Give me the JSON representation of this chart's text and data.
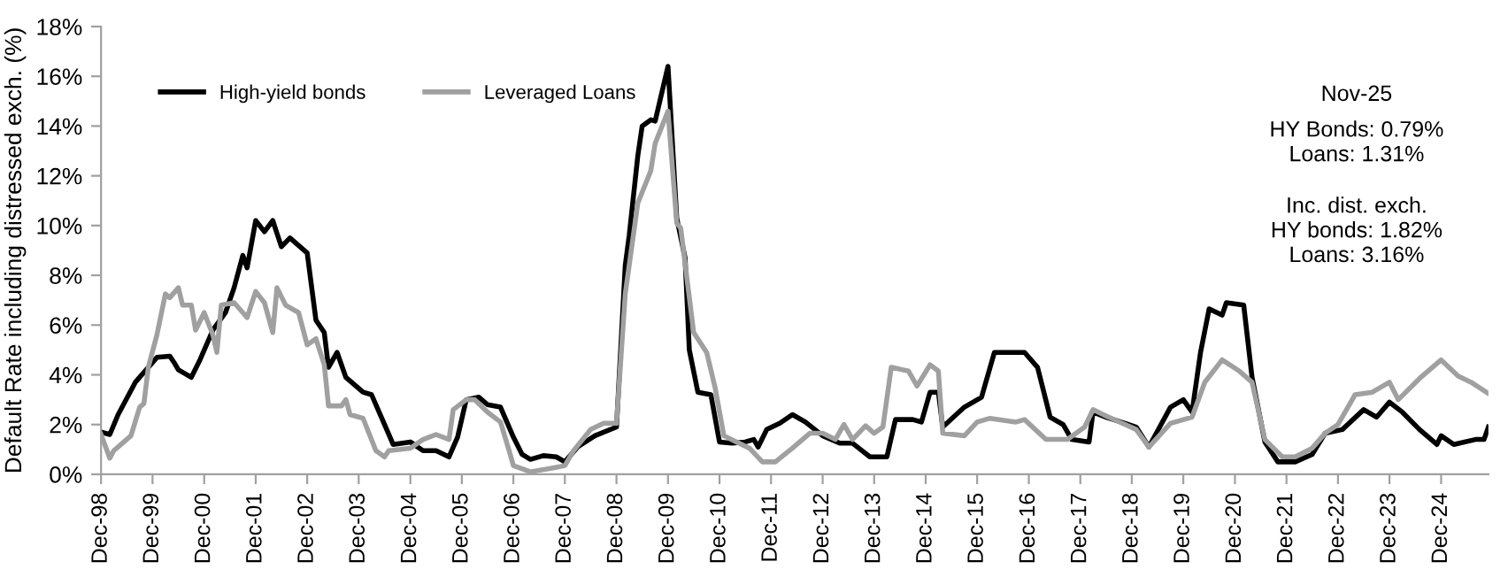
{
  "chart_data": {
    "type": "line",
    "ylabel": "Default Rate including distressed exch. (%)",
    "xlim": [
      "1998-12",
      "2025-11"
    ],
    "xticks": [
      {
        "value": "1998-12",
        "label": "Dec-98"
      },
      {
        "value": "1999-12",
        "label": "Dec-99"
      },
      {
        "value": "2000-12",
        "label": "Dec-00"
      },
      {
        "value": "2001-12",
        "label": "Dec-01"
      },
      {
        "value": "2002-12",
        "label": "Dec-02"
      },
      {
        "value": "2003-12",
        "label": "Dec-03"
      },
      {
        "value": "2004-12",
        "label": "Dec-04"
      },
      {
        "value": "2005-12",
        "label": "Dec-05"
      },
      {
        "value": "2006-12",
        "label": "Dec-06"
      },
      {
        "value": "2007-12",
        "label": "Dec-07"
      },
      {
        "value": "2008-12",
        "label": "Dec-08"
      },
      {
        "value": "2009-12",
        "label": "Dec-09"
      },
      {
        "value": "2010-12",
        "label": "Dec-10"
      },
      {
        "value": "2011-12",
        "label": "Dec-11"
      },
      {
        "value": "2012-12",
        "label": "Dec-12"
      },
      {
        "value": "2013-12",
        "label": "Dec-13"
      },
      {
        "value": "2014-12",
        "label": "Dec-14"
      },
      {
        "value": "2015-12",
        "label": "Dec-15"
      },
      {
        "value": "2016-12",
        "label": "Dec-16"
      },
      {
        "value": "2017-12",
        "label": "Dec-17"
      },
      {
        "value": "2018-12",
        "label": "Dec-18"
      },
      {
        "value": "2019-12",
        "label": "Dec-19"
      },
      {
        "value": "2020-12",
        "label": "Dec-20"
      },
      {
        "value": "2021-12",
        "label": "Dec-21"
      },
      {
        "value": "2022-12",
        "label": "Dec-22"
      },
      {
        "value": "2023-12",
        "label": "Dec-23"
      },
      {
        "value": "2024-12",
        "label": "Dec-24"
      }
    ],
    "ylim": [
      0,
      18
    ],
    "yticks": [
      {
        "value": 0,
        "label": "0%"
      },
      {
        "value": 2,
        "label": "2%"
      },
      {
        "value": 4,
        "label": "4%"
      },
      {
        "value": 6,
        "label": "6%"
      },
      {
        "value": 8,
        "label": "8%"
      },
      {
        "value": 10,
        "label": "10%"
      },
      {
        "value": 12,
        "label": "12%"
      },
      {
        "value": 14,
        "label": "14%"
      },
      {
        "value": 16,
        "label": "16%"
      },
      {
        "value": 18,
        "label": "18%"
      }
    ],
    "grid": false,
    "legend": "top left",
    "marker": "none",
    "line_style": "solid",
    "annotations": [
      "Nov-25",
      "HY Bonds: 0.79%\nLoans: 1.31%",
      "Inc. dist. exch.\nHY bonds: 1.82%\nLoans: 3.16%"
    ],
    "series": [
      {
        "name": "High-yield bonds",
        "color": "#000000",
        "x": [
          "1998-12",
          "1999-02",
          "1999-04",
          "1999-08",
          "1999-11",
          "2000-01",
          "2000-04",
          "2000-05",
          "2000-06",
          "2000-09",
          "2000-11",
          "2001-02",
          "2001-05",
          "2001-07",
          "2001-09",
          "2001-10",
          "2001-12",
          "2002-02",
          "2002-04",
          "2002-06",
          "2002-08",
          "2002-12",
          "2003-02",
          "2003-04",
          "2003-05",
          "2003-07",
          "2003-09",
          "2004-01",
          "2004-03",
          "2004-06",
          "2004-08",
          "2004-12",
          "2005-03",
          "2005-06",
          "2005-09",
          "2005-11",
          "2006-01",
          "2006-04",
          "2006-06",
          "2006-09",
          "2006-12",
          "2007-02",
          "2007-04",
          "2007-07",
          "2007-10",
          "2007-12",
          "2008-03",
          "2008-07",
          "2008-12",
          "2009-02",
          "2009-03",
          "2009-05",
          "2009-06",
          "2009-08",
          "2009-09",
          "2009-12",
          "2010-02",
          "2010-04",
          "2010-05",
          "2010-07",
          "2010-10",
          "2010-12",
          "2011-03",
          "2011-06",
          "2011-08",
          "2011-09",
          "2011-11",
          "2012-02",
          "2012-05",
          "2012-08",
          "2012-12",
          "2013-04",
          "2013-07",
          "2013-11",
          "2014-03",
          "2014-05",
          "2014-09",
          "2014-11",
          "2015-01",
          "2015-03",
          "2015-04",
          "2015-09",
          "2016-01",
          "2016-04",
          "2016-09",
          "2016-11",
          "2017-02",
          "2017-05",
          "2017-08",
          "2017-10",
          "2018-02",
          "2018-03",
          "2018-06",
          "2019-01",
          "2019-04",
          "2019-09",
          "2019-12",
          "2020-02",
          "2020-04",
          "2020-06",
          "2020-09",
          "2020-10",
          "2021-02",
          "2021-04",
          "2021-07",
          "2021-10",
          "2022-02",
          "2022-06",
          "2022-09",
          "2023-01",
          "2023-06",
          "2023-09",
          "2023-12",
          "2024-03",
          "2024-07",
          "2024-11",
          "2024-12",
          "2025-03",
          "2025-08",
          "2025-10",
          "2025-11"
        ],
        "values": [
          1.7,
          1.6,
          2.4,
          3.7,
          4.3,
          4.7,
          4.75,
          4.5,
          4.2,
          3.9,
          4.6,
          5.8,
          6.5,
          7.5,
          8.8,
          8.3,
          10.2,
          9.75,
          10.2,
          9.15,
          9.5,
          8.9,
          6.2,
          5.7,
          4.3,
          4.9,
          3.9,
          3.3,
          3.2,
          2.0,
          1.2,
          1.3,
          0.95,
          0.95,
          0.7,
          1.5,
          3.0,
          3.1,
          2.8,
          2.7,
          1.5,
          0.8,
          0.6,
          0.75,
          0.7,
          0.5,
          1.1,
          1.55,
          1.9,
          8.4,
          9.6,
          12.8,
          14.0,
          14.25,
          14.2,
          16.4,
          10.3,
          8.7,
          5.0,
          3.3,
          3.2,
          1.3,
          1.25,
          1.3,
          1.4,
          1.1,
          1.8,
          2.05,
          2.4,
          2.1,
          1.55,
          1.25,
          1.25,
          0.7,
          0.7,
          2.2,
          2.2,
          2.1,
          3.3,
          3.3,
          1.9,
          2.7,
          3.1,
          4.9,
          4.9,
          4.9,
          4.3,
          2.3,
          2.0,
          1.4,
          1.3,
          2.5,
          2.3,
          1.9,
          1.1,
          2.7,
          3.0,
          2.5,
          4.9,
          6.65,
          6.4,
          6.9,
          6.8,
          3.9,
          1.3,
          0.5,
          0.5,
          0.8,
          1.65,
          1.8,
          2.6,
          2.3,
          2.9,
          2.5,
          1.8,
          1.2,
          1.55,
          1.2,
          1.4,
          1.4,
          1.9
        ]
      },
      {
        "name": "Leveraged Loans",
        "color": "#a0a0a0",
        "x": [
          "1998-12",
          "1999-02",
          "1999-03",
          "1999-05",
          "1999-07",
          "1999-09",
          "1999-10",
          "1999-11",
          "2000-01",
          "2000-03",
          "2000-04",
          "2000-06",
          "2000-07",
          "2000-09",
          "2000-10",
          "2000-12",
          "2001-02",
          "2001-03",
          "2001-04",
          "2001-07",
          "2001-09",
          "2001-10",
          "2001-12",
          "2002-02",
          "2002-04",
          "2002-05",
          "2002-07",
          "2002-10",
          "2002-12",
          "2003-02",
          "2003-04",
          "2003-05",
          "2003-08",
          "2003-09",
          "2003-10",
          "2004-01",
          "2004-04",
          "2004-06",
          "2004-07",
          "2004-12",
          "2005-03",
          "2005-06",
          "2005-09",
          "2005-10",
          "2006-01",
          "2006-03",
          "2006-06",
          "2006-09",
          "2006-11",
          "2006-12",
          "2007-04",
          "2007-09",
          "2007-12",
          "2008-02",
          "2008-06",
          "2008-09",
          "2008-12",
          "2009-02",
          "2009-05",
          "2009-08",
          "2009-09",
          "2009-12",
          "2010-02",
          "2010-03",
          "2010-06",
          "2010-09",
          "2010-11",
          "2011-01",
          "2011-04",
          "2011-07",
          "2011-10",
          "2012-01",
          "2012-05",
          "2012-09",
          "2012-12",
          "2013-03",
          "2013-05",
          "2013-07",
          "2013-10",
          "2013-12",
          "2014-02",
          "2014-04",
          "2014-08",
          "2014-10",
          "2015-01",
          "2015-03",
          "2015-04",
          "2015-09",
          "2015-12",
          "2016-03",
          "2016-09",
          "2016-11",
          "2017-04",
          "2017-09",
          "2018-01",
          "2018-03",
          "2018-06",
          "2019-01",
          "2019-04",
          "2019-09",
          "2020-02",
          "2020-05",
          "2020-09",
          "2021-01",
          "2021-04",
          "2021-07",
          "2021-11",
          "2022-02",
          "2022-06",
          "2022-09",
          "2022-12",
          "2023-04",
          "2023-08",
          "2023-12",
          "2024-02",
          "2024-07",
          "2024-12",
          "2025-04",
          "2025-07",
          "2025-11"
        ],
        "values": [
          1.6,
          0.65,
          0.95,
          1.25,
          1.55,
          2.7,
          2.85,
          4.3,
          5.6,
          7.25,
          7.1,
          7.5,
          6.8,
          6.8,
          5.8,
          6.5,
          5.6,
          4.9,
          6.8,
          6.9,
          6.5,
          6.3,
          7.35,
          6.9,
          5.7,
          7.5,
          6.8,
          6.5,
          5.2,
          5.45,
          4.4,
          2.75,
          2.75,
          3.0,
          2.4,
          2.25,
          0.95,
          0.7,
          0.95,
          1.05,
          1.4,
          1.6,
          1.4,
          2.6,
          3.0,
          3.0,
          2.5,
          2.1,
          0.95,
          0.35,
          0.1,
          0.25,
          0.35,
          0.95,
          1.8,
          2.05,
          2.05,
          7.25,
          10.9,
          12.2,
          13.3,
          14.6,
          10.1,
          9.9,
          5.7,
          4.9,
          3.45,
          1.55,
          1.3,
          1.05,
          0.5,
          0.5,
          1.05,
          1.65,
          1.65,
          1.4,
          2.0,
          1.4,
          1.95,
          1.65,
          1.9,
          4.3,
          4.15,
          3.55,
          4.4,
          4.15,
          1.65,
          1.55,
          2.1,
          2.25,
          2.1,
          2.2,
          1.4,
          1.4,
          1.9,
          2.6,
          2.35,
          1.8,
          1.1,
          2.05,
          2.3,
          3.7,
          4.6,
          4.15,
          3.7,
          1.4,
          0.7,
          0.7,
          1.05,
          1.65,
          2.0,
          3.2,
          3.3,
          3.7,
          3.0,
          3.85,
          4.6,
          3.95,
          3.7,
          3.25
        ]
      }
    ]
  }
}
